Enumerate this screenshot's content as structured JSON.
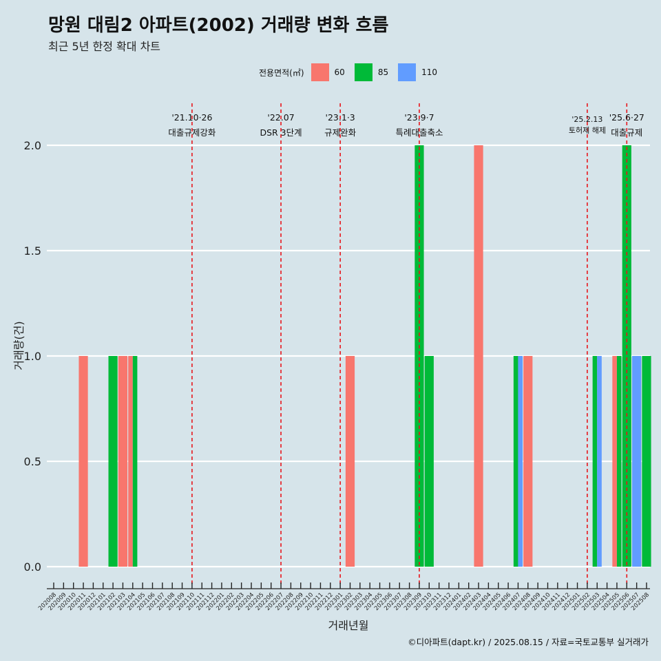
{
  "title": "망원 대림2 아파트(2002) 거래량 변화 흐름",
  "subtitle": "최근 5년 한정 확대 차트",
  "caption": "©디아파트(dapt.kr) / 2025.08.15 / 자료=국토교통부 실거래가",
  "legend": {
    "title": "전용면적(㎡)",
    "items": [
      {
        "label": "60",
        "color": "#f8766d"
      },
      {
        "label": "85",
        "color": "#00ba38"
      },
      {
        "label": "110",
        "color": "#619cff"
      }
    ]
  },
  "chart_data": {
    "type": "bar",
    "xlabel": "거래년월",
    "ylabel": "거래량(건)",
    "ylim": [
      0,
      2
    ],
    "yticks": [
      "0.0",
      "0.5",
      "1.0",
      "1.5",
      "2.0"
    ],
    "grid": true,
    "legend_position": "top",
    "categories": [
      "202008",
      "202009",
      "202010",
      "202011",
      "202012",
      "202101",
      "202102",
      "202103",
      "202104",
      "202105",
      "202106",
      "202107",
      "202108",
      "202109",
      "202110",
      "202111",
      "202112",
      "202201",
      "202202",
      "202203",
      "202204",
      "202205",
      "202206",
      "202207",
      "202208",
      "202209",
      "202210",
      "202211",
      "202212",
      "202301",
      "202302",
      "202303",
      "202304",
      "202305",
      "202306",
      "202307",
      "202308",
      "202309",
      "202310",
      "202311",
      "202312",
      "202401",
      "202402",
      "202403",
      "202404",
      "202405",
      "202406",
      "202407",
      "202408",
      "202409",
      "202410",
      "202411",
      "202412",
      "202501",
      "202502",
      "202503",
      "202504",
      "202505",
      "202506",
      "202507",
      "202508"
    ],
    "bars": [
      {
        "month": "202011",
        "area": "60",
        "value": 1
      },
      {
        "month": "202102",
        "area": "85",
        "value": 1
      },
      {
        "month": "202103",
        "area": "60",
        "value": 1
      },
      {
        "month": "202104",
        "area": "60",
        "value": 1
      },
      {
        "month": "202104",
        "area": "85",
        "value": 1
      },
      {
        "month": "202302",
        "area": "60",
        "value": 1
      },
      {
        "month": "202309",
        "area": "85",
        "value": 2
      },
      {
        "month": "202310",
        "area": "85",
        "value": 1
      },
      {
        "month": "202403",
        "area": "60",
        "value": 2
      },
      {
        "month": "202407",
        "area": "85",
        "value": 1
      },
      {
        "month": "202407",
        "area": "110",
        "value": 1
      },
      {
        "month": "202408",
        "area": "60",
        "value": 1
      },
      {
        "month": "202503",
        "area": "85",
        "value": 1
      },
      {
        "month": "202503",
        "area": "110",
        "value": 1
      },
      {
        "month": "202505",
        "area": "60",
        "value": 1
      },
      {
        "month": "202505",
        "area": "85",
        "value": 1
      },
      {
        "month": "202506",
        "area": "85",
        "value": 2
      },
      {
        "month": "202507",
        "area": "110",
        "value": 1
      },
      {
        "month": "202508",
        "area": "85",
        "value": 1
      }
    ],
    "events": [
      {
        "month": "202110",
        "date": "'21.10·26",
        "label": "대출규제강화",
        "tier": "high"
      },
      {
        "month": "202207",
        "date": "'22.07",
        "label": "DSR 3단계",
        "tier": "high"
      },
      {
        "month": "202301",
        "date": "'23.1·3",
        "label": "규제완화",
        "tier": "high"
      },
      {
        "month": "202309",
        "date": "'23.9·7",
        "label": "특례대출축소",
        "tier": "high"
      },
      {
        "month": "202502",
        "date": "'25.2.13",
        "label": "토허제 해제",
        "tier": "low"
      },
      {
        "month": "202506",
        "date": "'25.6·27",
        "label": "대출규제",
        "tier": "high"
      }
    ]
  }
}
